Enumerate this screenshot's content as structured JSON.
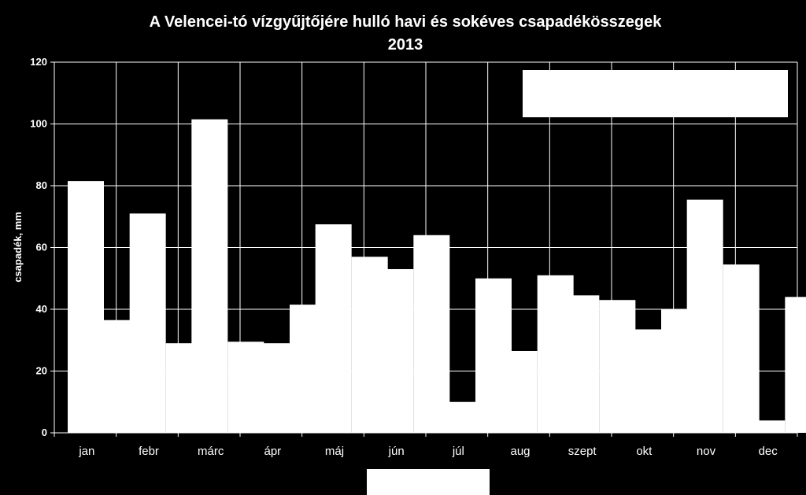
{
  "chart_data": {
    "type": "bar",
    "title": "A Velencei-tó vízgyűjtőjére hulló havi és sokéves csapadékösszegek",
    "subtitle": "2013",
    "xlabel": "",
    "ylabel": "csapadék, mm",
    "ylim": [
      0,
      120
    ],
    "yticks": [
      0,
      20,
      40,
      60,
      80,
      100,
      120
    ],
    "grid": true,
    "categories": [
      "jan",
      "febr",
      "márc",
      "ápr",
      "máj",
      "jún",
      "júl",
      "aug",
      "szept",
      "okt",
      "nov",
      "dec"
    ],
    "series": [
      {
        "values": [
          81.5,
          71,
          101.5,
          29,
          67.5,
          53,
          10,
          26.5,
          44.5,
          33.5,
          75.5,
          4
        ]
      },
      {
        "values": [
          36.5,
          29,
          29.5,
          41.5,
          57,
          64,
          50,
          51,
          43,
          40,
          54.5,
          44
        ]
      }
    ],
    "colors": {
      "background": "#000000",
      "bars": "#ffffff",
      "grid": "#ffffff"
    }
  }
}
